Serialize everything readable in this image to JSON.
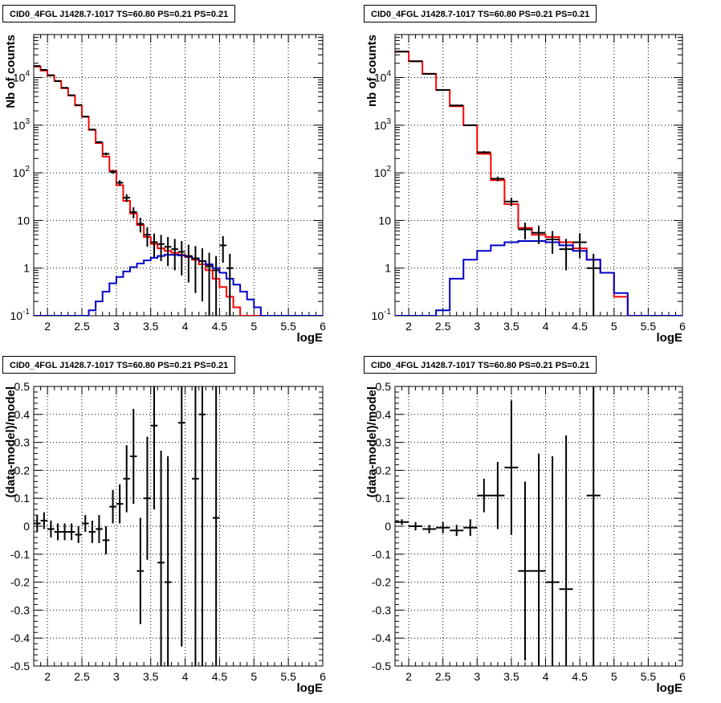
{
  "chart_data": [
    {
      "id": "p0",
      "type": "histogram",
      "title": "CID0_4FGL J1428.7-1017 TS=60.80 PS=0.21 PS=0.21",
      "xlabel": "logE",
      "ylabel": "Nb of counts",
      "xlim": [
        1.8,
        6.0
      ],
      "ylim": [
        0.1,
        80000
      ],
      "log_y": true,
      "grid": true,
      "x_ticks": [
        "2",
        "2.5",
        "3",
        "3.5",
        "4",
        "4.5",
        "5",
        "5.5",
        "6"
      ],
      "y_ticks": [
        "10^-1",
        "1",
        "10",
        "10^2",
        "10^3",
        "10^4"
      ],
      "series": [
        {
          "color": "#ff0000",
          "kind": "step",
          "edges": [
            1.8,
            1.9,
            2.0,
            2.1,
            2.2,
            2.3,
            2.4,
            2.5,
            2.6,
            2.7,
            2.8,
            2.9,
            3.0,
            3.1,
            3.2,
            3.3,
            3.4,
            3.5,
            3.6,
            3.7,
            3.8,
            3.9,
            4.0,
            4.1,
            4.2,
            4.3,
            4.4,
            4.5,
            4.6,
            4.7,
            4.8,
            4.9,
            5.0,
            5.1,
            5.2,
            5.3,
            5.4,
            5.5,
            5.6,
            5.7,
            5.8,
            5.9,
            6.0
          ],
          "values": [
            17000,
            14000,
            11000,
            8500,
            6000,
            4200,
            2600,
            1500,
            800,
            420,
            220,
            110,
            55,
            26,
            14,
            8,
            4.5,
            3.2,
            2.6,
            2.3,
            2.1,
            1.9,
            1.7,
            1.5,
            1.2,
            0.9,
            0.6,
            0.4,
            0.25,
            0.15,
            0.1,
            0.1,
            0.1,
            0.1,
            0.1,
            0.1,
            0.1,
            0.1,
            0.1,
            0.1,
            0.1,
            0.1
          ]
        },
        {
          "color": "#0000cc",
          "kind": "step",
          "edges": [
            1.8,
            1.9,
            2.0,
            2.1,
            2.2,
            2.3,
            2.4,
            2.5,
            2.6,
            2.7,
            2.8,
            2.9,
            3.0,
            3.1,
            3.2,
            3.3,
            3.4,
            3.5,
            3.6,
            3.7,
            3.8,
            3.9,
            4.0,
            4.1,
            4.2,
            4.3,
            4.4,
            4.5,
            4.6,
            4.7,
            4.8,
            4.9,
            5.0,
            5.1,
            5.2,
            5.3,
            5.4,
            5.5,
            5.6,
            5.7,
            5.8,
            5.9,
            6.0
          ],
          "values": [
            0.1,
            0.1,
            0.1,
            0.1,
            0.1,
            0.1,
            0.1,
            0.1,
            0.13,
            0.2,
            0.32,
            0.48,
            0.65,
            0.85,
            1.05,
            1.25,
            1.45,
            1.65,
            1.8,
            1.9,
            1.9,
            1.85,
            1.75,
            1.6,
            1.4,
            1.2,
            1.0,
            0.8,
            0.6,
            0.45,
            0.32,
            0.22,
            0.15,
            0.1,
            0.1,
            0.1,
            0.1,
            0.1,
            0.1,
            0.1,
            0.1,
            0.1
          ]
        },
        {
          "color": "#000000",
          "kind": "errorbar",
          "x": [
            1.85,
            1.95,
            2.05,
            2.15,
            2.25,
            2.35,
            2.45,
            2.55,
            2.65,
            2.75,
            2.85,
            2.95,
            3.05,
            3.15,
            3.25,
            3.35,
            3.45,
            3.55,
            3.65,
            3.75,
            3.85,
            3.95,
            4.05,
            4.15,
            4.25,
            4.35,
            4.45,
            4.55,
            4.65
          ],
          "y": [
            17500,
            14500,
            11200,
            8400,
            6100,
            4250,
            2650,
            1520,
            810,
            440,
            250,
            105,
            62,
            30,
            15,
            8.5,
            5,
            3.5,
            3.2,
            2.8,
            2.5,
            2.2,
            1.8,
            1.6,
            1.4,
            1.1,
            0.9,
            3.0,
            1.0
          ],
          "yerr": [
            130,
            120,
            106,
            92,
            78,
            65,
            51,
            39,
            28,
            21,
            16,
            10,
            8,
            5.5,
            3.9,
            2.9,
            2.2,
            1.8,
            1.8,
            1.7,
            1.6,
            1.5,
            1.3,
            1.3,
            1.2,
            1.0,
            0.9,
            1.7,
            1.0
          ],
          "xerr": 0.05
        }
      ]
    },
    {
      "id": "p1",
      "type": "histogram",
      "title": "CID0_4FGL J1428.7-1017 TS=60.80 PS=0.21 PS=0.21",
      "xlabel": "logE",
      "ylabel": "nb of counts",
      "xlim": [
        1.8,
        6.0
      ],
      "ylim": [
        0.1,
        80000
      ],
      "log_y": true,
      "grid": true,
      "x_ticks": [
        "2",
        "2.5",
        "3",
        "3.5",
        "4",
        "4.5",
        "5",
        "5.5",
        "6"
      ],
      "y_ticks": [
        "10^-1",
        "1",
        "10",
        "10^2",
        "10^3",
        "10^4"
      ],
      "series": [
        {
          "color": "#ff0000",
          "kind": "step",
          "edges": [
            1.8,
            2.0,
            2.2,
            2.4,
            2.6,
            2.8,
            3.0,
            3.2,
            3.4,
            3.6,
            3.8,
            4.0,
            4.2,
            4.4,
            4.6,
            4.8,
            5.0,
            5.2,
            5.4,
            5.6,
            5.8,
            6.0
          ],
          "values": [
            35000,
            22000,
            12000,
            5500,
            2500,
            1000,
            250,
            70,
            22,
            7,
            5,
            4.5,
            3.5,
            2.6,
            1.5,
            0.8,
            0.25,
            0.1,
            0.1,
            0.1,
            0.1
          ],
          "_note_removed": true
        },
        {
          "color": "#0000cc",
          "kind": "step",
          "edges": [
            1.8,
            2.0,
            2.2,
            2.4,
            2.6,
            2.8,
            3.0,
            3.2,
            3.4,
            3.6,
            3.8,
            4.0,
            4.2,
            4.4,
            4.6,
            4.8,
            5.0,
            5.2,
            5.4,
            5.6,
            5.8,
            6.0
          ],
          "values": [
            0.1,
            0.1,
            0.1,
            0.13,
            0.6,
            1.5,
            2.3,
            3.0,
            3.5,
            3.7,
            3.7,
            3.5,
            3.0,
            2.3,
            1.5,
            0.8,
            0.3,
            0.1,
            0.1,
            0.1,
            0.1
          ]
        },
        {
          "color": "#000000",
          "kind": "errorbar",
          "x": [
            1.9,
            2.1,
            2.3,
            2.5,
            2.7,
            2.9,
            3.1,
            3.3,
            3.5,
            3.7,
            3.9,
            4.1,
            4.3,
            4.5,
            4.7
          ],
          "y": [
            35000,
            22000,
            12000,
            5500,
            2600,
            1000,
            270,
            75,
            25,
            6.5,
            5.5,
            4,
            2.5,
            3.5,
            1.0
          ],
          "yerr": [
            190,
            150,
            110,
            74,
            51,
            32,
            16,
            8.5,
            5,
            2.5,
            2.3,
            2,
            1.6,
            1.9,
            1.0
          ],
          "xerr": 0.1
        }
      ]
    },
    {
      "id": "p2",
      "type": "residual",
      "title": "CID0_4FGL J1428.7-1017 TS=60.80 PS=0.21 PS=0.21",
      "xlabel": "logE",
      "ylabel": "(data-model)/model",
      "xlim": [
        1.8,
        6.0
      ],
      "ylim": [
        -0.5,
        0.5
      ],
      "log_y": false,
      "grid": true,
      "x_ticks": [
        "2",
        "2.5",
        "3",
        "3.5",
        "4",
        "4.5",
        "5",
        "5.5",
        "6"
      ],
      "y_ticks": [
        "-0.5",
        "-0.4",
        "-0.3",
        "-0.2",
        "-0.1",
        "0",
        "0.1",
        "0.2",
        "0.3",
        "0.4",
        "0.5"
      ],
      "series": [
        {
          "color": "#000000",
          "kind": "errorbar",
          "x": [
            1.85,
            1.95,
            2.05,
            2.15,
            2.25,
            2.35,
            2.45,
            2.55,
            2.65,
            2.75,
            2.85,
            2.95,
            3.05,
            3.15,
            3.25,
            3.35,
            3.45,
            3.55,
            3.65,
            3.75,
            3.95,
            4.15,
            4.25,
            4.45
          ],
          "y": [
            0.01,
            0.02,
            -0.01,
            -0.02,
            -0.02,
            -0.02,
            -0.03,
            0.01,
            -0.02,
            -0.01,
            -0.05,
            0.07,
            0.08,
            0.17,
            0.25,
            -0.16,
            0.1,
            0.36,
            -0.13,
            -0.2,
            0.37,
            0.17,
            0.4,
            0.03
          ],
          "yerr": [
            0.03,
            0.03,
            0.03,
            0.03,
            0.03,
            0.03,
            0.03,
            0.03,
            0.04,
            0.05,
            0.05,
            0.06,
            0.07,
            0.12,
            0.17,
            0.19,
            0.22,
            0.3,
            0.4,
            0.45,
            0.8,
            0.8,
            0.9,
            0.9
          ],
          "xerr": 0.05
        }
      ]
    },
    {
      "id": "p3",
      "type": "residual",
      "title": "CID0_4FGL J1428.7-1017 TS=60.80 PS=0.21 PS=0.21",
      "xlabel": "logE",
      "ylabel": "(data-model)/model",
      "xlim": [
        1.8,
        6.0
      ],
      "ylim": [
        -0.5,
        0.5
      ],
      "log_y": false,
      "grid": true,
      "x_ticks": [
        "2",
        "2.5",
        "3",
        "3.5",
        "4",
        "4.5",
        "5",
        "5.5",
        "6"
      ],
      "y_ticks": [
        "-0.5",
        "-0.4",
        "-0.3",
        "-0.2",
        "-0.1",
        "0",
        "0.1",
        "0.2",
        "0.3",
        "0.4",
        "0.5"
      ],
      "series": [
        {
          "color": "#000000",
          "kind": "errorbar",
          "x": [
            1.9,
            2.1,
            2.3,
            2.5,
            2.7,
            2.9,
            3.1,
            3.3,
            3.5,
            3.7,
            3.9,
            4.1,
            4.3,
            4.7
          ],
          "y": [
            0.015,
            0.0,
            -0.01,
            -0.005,
            -0.015,
            -0.005,
            0.11,
            0.11,
            0.21,
            -0.16,
            -0.16,
            -0.2,
            -0.225,
            0.11
          ],
          "yerr": [
            0.01,
            0.015,
            0.015,
            0.02,
            0.02,
            0.03,
            0.06,
            0.12,
            0.24,
            0.32,
            0.42,
            0.45,
            0.55,
            0.9
          ],
          "xerr": 0.1
        }
      ]
    }
  ]
}
